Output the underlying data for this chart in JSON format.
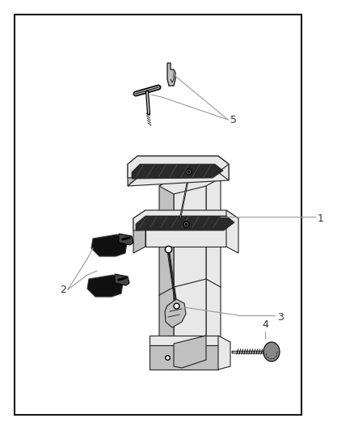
{
  "bg_color": "#ffffff",
  "border_color": "#1a1a1a",
  "border_linewidth": 1.5,
  "line_color": "#999999",
  "text_color": "#333333",
  "part_light": "#e8e8e8",
  "part_mid": "#c0c0c0",
  "part_dark": "#888888",
  "part_black": "#111111",
  "label_fontsize": 9
}
